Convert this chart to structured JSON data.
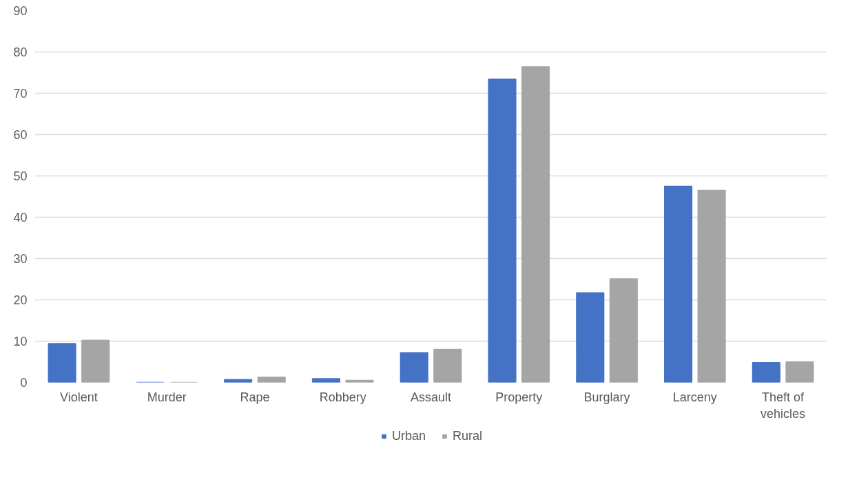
{
  "chart_data": {
    "type": "bar",
    "categories": [
      "Violent",
      "Murder",
      "Rape",
      "Robbery",
      "Assault",
      "Property",
      "Burglary",
      "Larceny",
      "Theft of vehicles"
    ],
    "series": [
      {
        "name": "Urban",
        "color": "#4472c4",
        "values": [
          9.4,
          0,
          0.7,
          0.9,
          7.2,
          73.4,
          21.7,
          47.5,
          4.8
        ]
      },
      {
        "name": "Rural",
        "color": "#a5a5a5",
        "values": [
          10.2,
          0,
          1.3,
          0.5,
          8.0,
          76.4,
          25.1,
          46.5,
          5.0
        ]
      }
    ],
    "ylim": [
      0,
      90
    ],
    "yticks": [
      0,
      10,
      20,
      30,
      40,
      50,
      60,
      70,
      80,
      90
    ],
    "grid": "y",
    "legend": "bottom"
  }
}
